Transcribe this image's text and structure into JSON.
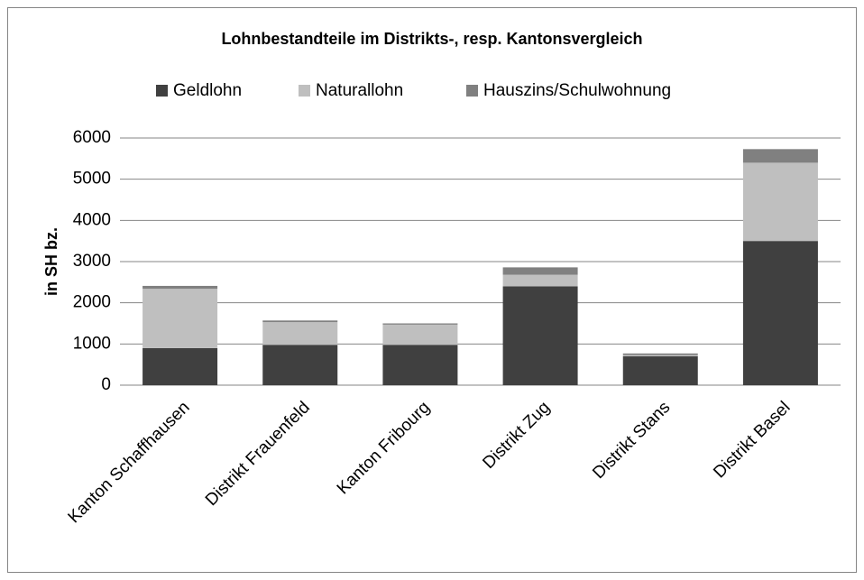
{
  "chart_data": {
    "type": "stacked_bar",
    "title": "Lohnbestandteile im Distrikts-, resp. Kantonsvergleich",
    "y_label": "in SH bz.",
    "categories": [
      "Kanton Schaffhausen",
      "Distrikt Frauenfeld",
      "Kanton Fribourg",
      "Distrikt Zug",
      "Distrikt Stans",
      "Distrikt Basel"
    ],
    "series": [
      {
        "name": "Geldlohn",
        "color": "#404040",
        "values": [
          900,
          980,
          980,
          2400,
          700,
          3500
        ]
      },
      {
        "name": "Naturallohn",
        "color": "#bfbfbf",
        "values": [
          1440,
          550,
          490,
          280,
          30,
          1900
        ]
      },
      {
        "name": "Hauszins/Schulwohnung",
        "color": "#808080",
        "values": [
          70,
          40,
          30,
          180,
          40,
          330
        ]
      }
    ],
    "ylim": [
      0,
      6000
    ],
    "yticks": [
      0,
      1000,
      2000,
      3000,
      4000,
      5000,
      6000
    ],
    "grid": true,
    "legend": "top"
  }
}
